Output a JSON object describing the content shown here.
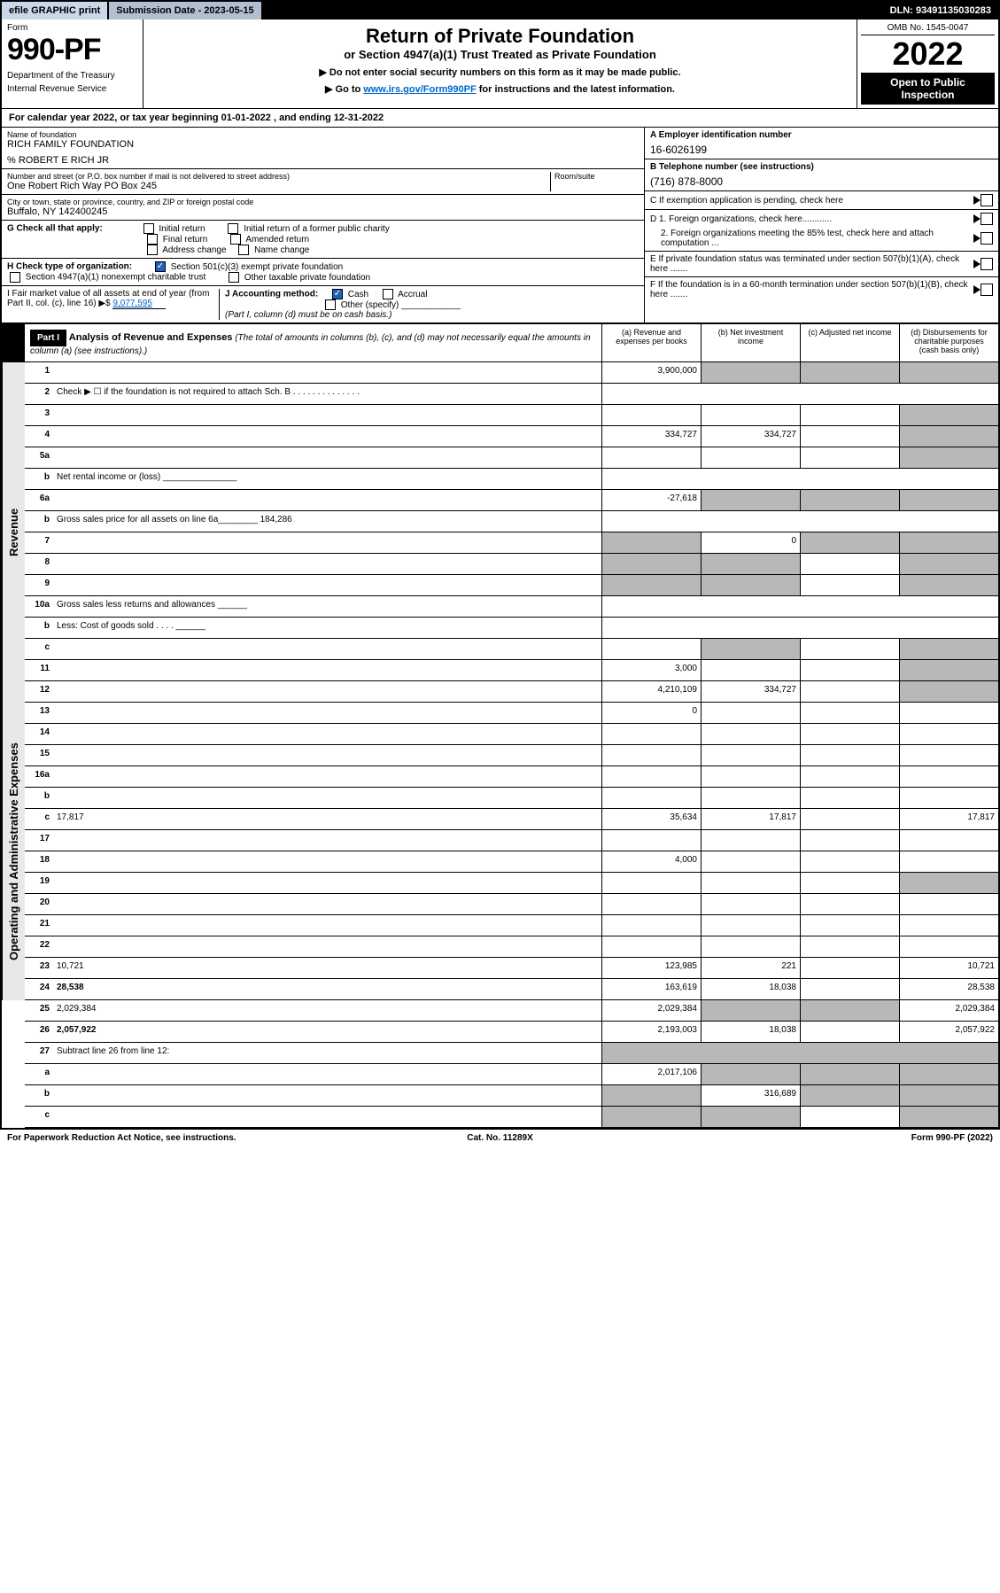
{
  "top": {
    "efile": "efile GRAPHIC print",
    "submission": "Submission Date - 2023-05-15",
    "dln": "DLN: 93491135030283"
  },
  "header": {
    "form": "Form",
    "formno": "990-PF",
    "dept": "Department of the Treasury",
    "irs": "Internal Revenue Service",
    "title": "Return of Private Foundation",
    "subtitle": "or Section 4947(a)(1) Trust Treated as Private Foundation",
    "note1": "▶ Do not enter social security numbers on this form as it may be made public.",
    "note2": "▶ Go to ",
    "link": "www.irs.gov/Form990PF",
    "note3": " for instructions and the latest information.",
    "omb": "OMB No. 1545-0047",
    "year": "2022",
    "open": "Open to Public Inspection"
  },
  "calyear": "For calendar year 2022, or tax year beginning 01-01-2022                            , and ending 12-31-2022",
  "info": {
    "name_label": "Name of foundation",
    "name": "RICH FAMILY FOUNDATION",
    "care": "% ROBERT E RICH JR",
    "addr_label": "Number and street (or P.O. box number if mail is not delivered to street address)",
    "addr": "One Robert Rich Way PO Box 245",
    "room_label": "Room/suite",
    "city_label": "City or town, state or province, country, and ZIP or foreign postal code",
    "city": "Buffalo, NY  142400245",
    "ein_label": "A Employer identification number",
    "ein": "16-6026199",
    "phone_label": "B Telephone number (see instructions)",
    "phone": "(716) 878-8000",
    "c": "C If exemption application is pending, check here",
    "d1": "D 1. Foreign organizations, check here............",
    "d2": "2. Foreign organizations meeting the 85% test, check here and attach computation ...",
    "e": "E If private foundation status was terminated under section 507(b)(1)(A), check here .......",
    "f": "F If the foundation is in a 60-month termination under section 507(b)(1)(B), check here .......",
    "g": "G Check all that apply:",
    "g_opts": [
      "Initial return",
      "Initial return of a former public charity",
      "Final return",
      "Amended return",
      "Address change",
      "Name change"
    ],
    "h": "H Check type of organization:",
    "h1": "Section 501(c)(3) exempt private foundation",
    "h2": "Section 4947(a)(1) nonexempt charitable trust",
    "h3": "Other taxable private foundation",
    "i": "I Fair market value of all assets at end of year (from Part II, col. (c), line 16) ▶$",
    "i_val": "9,077,595",
    "j": "J Accounting method:",
    "j_cash": "Cash",
    "j_accrual": "Accrual",
    "j_other": "Other (specify)",
    "j_note": "(Part I, column (d) must be on cash basis.)"
  },
  "part1": {
    "label": "Part I",
    "title": "Analysis of Revenue and Expenses",
    "note": " (The total of amounts in columns (b), (c), and (d) may not necessarily equal the amounts in column (a) (see instructions).)",
    "cols": [
      "(a)   Revenue and expenses per books",
      "(b)   Net investment income",
      "(c)   Adjusted net income",
      "(d)   Disbursements for charitable purposes (cash basis only)"
    ]
  },
  "sections": {
    "revenue": "Revenue",
    "expenses": "Operating and Administrative Expenses"
  },
  "rows": [
    {
      "n": "1",
      "d": "",
      "a": "3,900,000",
      "b": "",
      "c": "",
      "grey": [
        "b",
        "c",
        "d"
      ]
    },
    {
      "n": "2",
      "d": "Check ▶ ☐ if the foundation is not required to attach Sch. B     .  .  .  .  .  .  .  .  .  .  .  .  .  .",
      "nocols": true
    },
    {
      "n": "3",
      "d": "",
      "a": "",
      "b": "",
      "c": "",
      "grey": [
        "d"
      ]
    },
    {
      "n": "4",
      "d": "",
      "a": "334,727",
      "b": "334,727",
      "c": "",
      "grey": [
        "d"
      ]
    },
    {
      "n": "5a",
      "d": "",
      "a": "",
      "b": "",
      "c": "",
      "grey": [
        "d"
      ]
    },
    {
      "n": "b",
      "d": "Net rental income or (loss) _______________",
      "nocols": true
    },
    {
      "n": "6a",
      "d": "",
      "a": "-27,618",
      "b": "",
      "c": "",
      "grey": [
        "b",
        "c",
        "d"
      ]
    },
    {
      "n": "b",
      "d": "Gross sales price for all assets on line 6a________ 184,286",
      "nocols": true
    },
    {
      "n": "7",
      "d": "",
      "a": "",
      "b": "0",
      "c": "",
      "grey": [
        "a",
        "c",
        "d"
      ]
    },
    {
      "n": "8",
      "d": "",
      "a": "",
      "b": "",
      "c": "",
      "grey": [
        "a",
        "b",
        "d"
      ]
    },
    {
      "n": "9",
      "d": "",
      "a": "",
      "b": "",
      "c": "",
      "grey": [
        "a",
        "b",
        "d"
      ]
    },
    {
      "n": "10a",
      "d": "Gross sales less returns and allowances  ______",
      "nocols": true
    },
    {
      "n": "b",
      "d": "Less: Cost of goods sold    .   .   .   .   ______",
      "nocols": true
    },
    {
      "n": "c",
      "d": "",
      "a": "",
      "b": "",
      "c": "",
      "grey": [
        "b",
        "d"
      ]
    },
    {
      "n": "11",
      "d": "",
      "a": "3,000",
      "b": "",
      "c": "",
      "grey": [
        "d"
      ]
    },
    {
      "n": "12",
      "d": "",
      "a": "4,210,109",
      "b": "334,727",
      "c": "",
      "grey": [
        "d"
      ],
      "bold": true
    },
    {
      "n": "13",
      "d": "",
      "a": "0",
      "b": "",
      "c": "",
      "sec": "exp"
    },
    {
      "n": "14",
      "d": "",
      "a": "",
      "b": "",
      "c": ""
    },
    {
      "n": "15",
      "d": "",
      "a": "",
      "b": "",
      "c": ""
    },
    {
      "n": "16a",
      "d": "",
      "a": "",
      "b": "",
      "c": ""
    },
    {
      "n": "b",
      "d": "",
      "a": "",
      "b": "",
      "c": ""
    },
    {
      "n": "c",
      "d": "17,817",
      "a": "35,634",
      "b": "17,817",
      "c": ""
    },
    {
      "n": "17",
      "d": "",
      "a": "",
      "b": "",
      "c": ""
    },
    {
      "n": "18",
      "d": "",
      "a": "4,000",
      "b": "",
      "c": ""
    },
    {
      "n": "19",
      "d": "",
      "a": "",
      "b": "",
      "c": "",
      "grey": [
        "d"
      ]
    },
    {
      "n": "20",
      "d": "",
      "a": "",
      "b": "",
      "c": ""
    },
    {
      "n": "21",
      "d": "",
      "a": "",
      "b": "",
      "c": ""
    },
    {
      "n": "22",
      "d": "",
      "a": "",
      "b": "",
      "c": ""
    },
    {
      "n": "23",
      "d": "10,721",
      "a": "123,985",
      "b": "221",
      "c": ""
    },
    {
      "n": "24",
      "d": "28,538",
      "a": "163,619",
      "b": "18,038",
      "c": "",
      "bold": true
    },
    {
      "n": "25",
      "d": "2,029,384",
      "a": "2,029,384",
      "b": "",
      "c": "",
      "grey": [
        "b",
        "c"
      ]
    },
    {
      "n": "26",
      "d": "2,057,922",
      "a": "2,193,003",
      "b": "18,038",
      "c": "",
      "bold": true
    },
    {
      "n": "27",
      "d": "Subtract line 26 from line 12:",
      "nocols": true,
      "grey4": true
    },
    {
      "n": "a",
      "d": "",
      "a": "2,017,106",
      "b": "",
      "c": "",
      "grey": [
        "b",
        "c",
        "d"
      ],
      "bold": true
    },
    {
      "n": "b",
      "d": "",
      "a": "",
      "b": "316,689",
      "c": "",
      "grey": [
        "a",
        "c",
        "d"
      ],
      "bold": true
    },
    {
      "n": "c",
      "d": "",
      "a": "",
      "b": "",
      "c": "",
      "grey": [
        "a",
        "b",
        "d"
      ],
      "bold": true
    }
  ],
  "footer": {
    "l": "For Paperwork Reduction Act Notice, see instructions.",
    "m": "Cat. No. 11289X",
    "r": "Form 990-PF (2022)"
  }
}
